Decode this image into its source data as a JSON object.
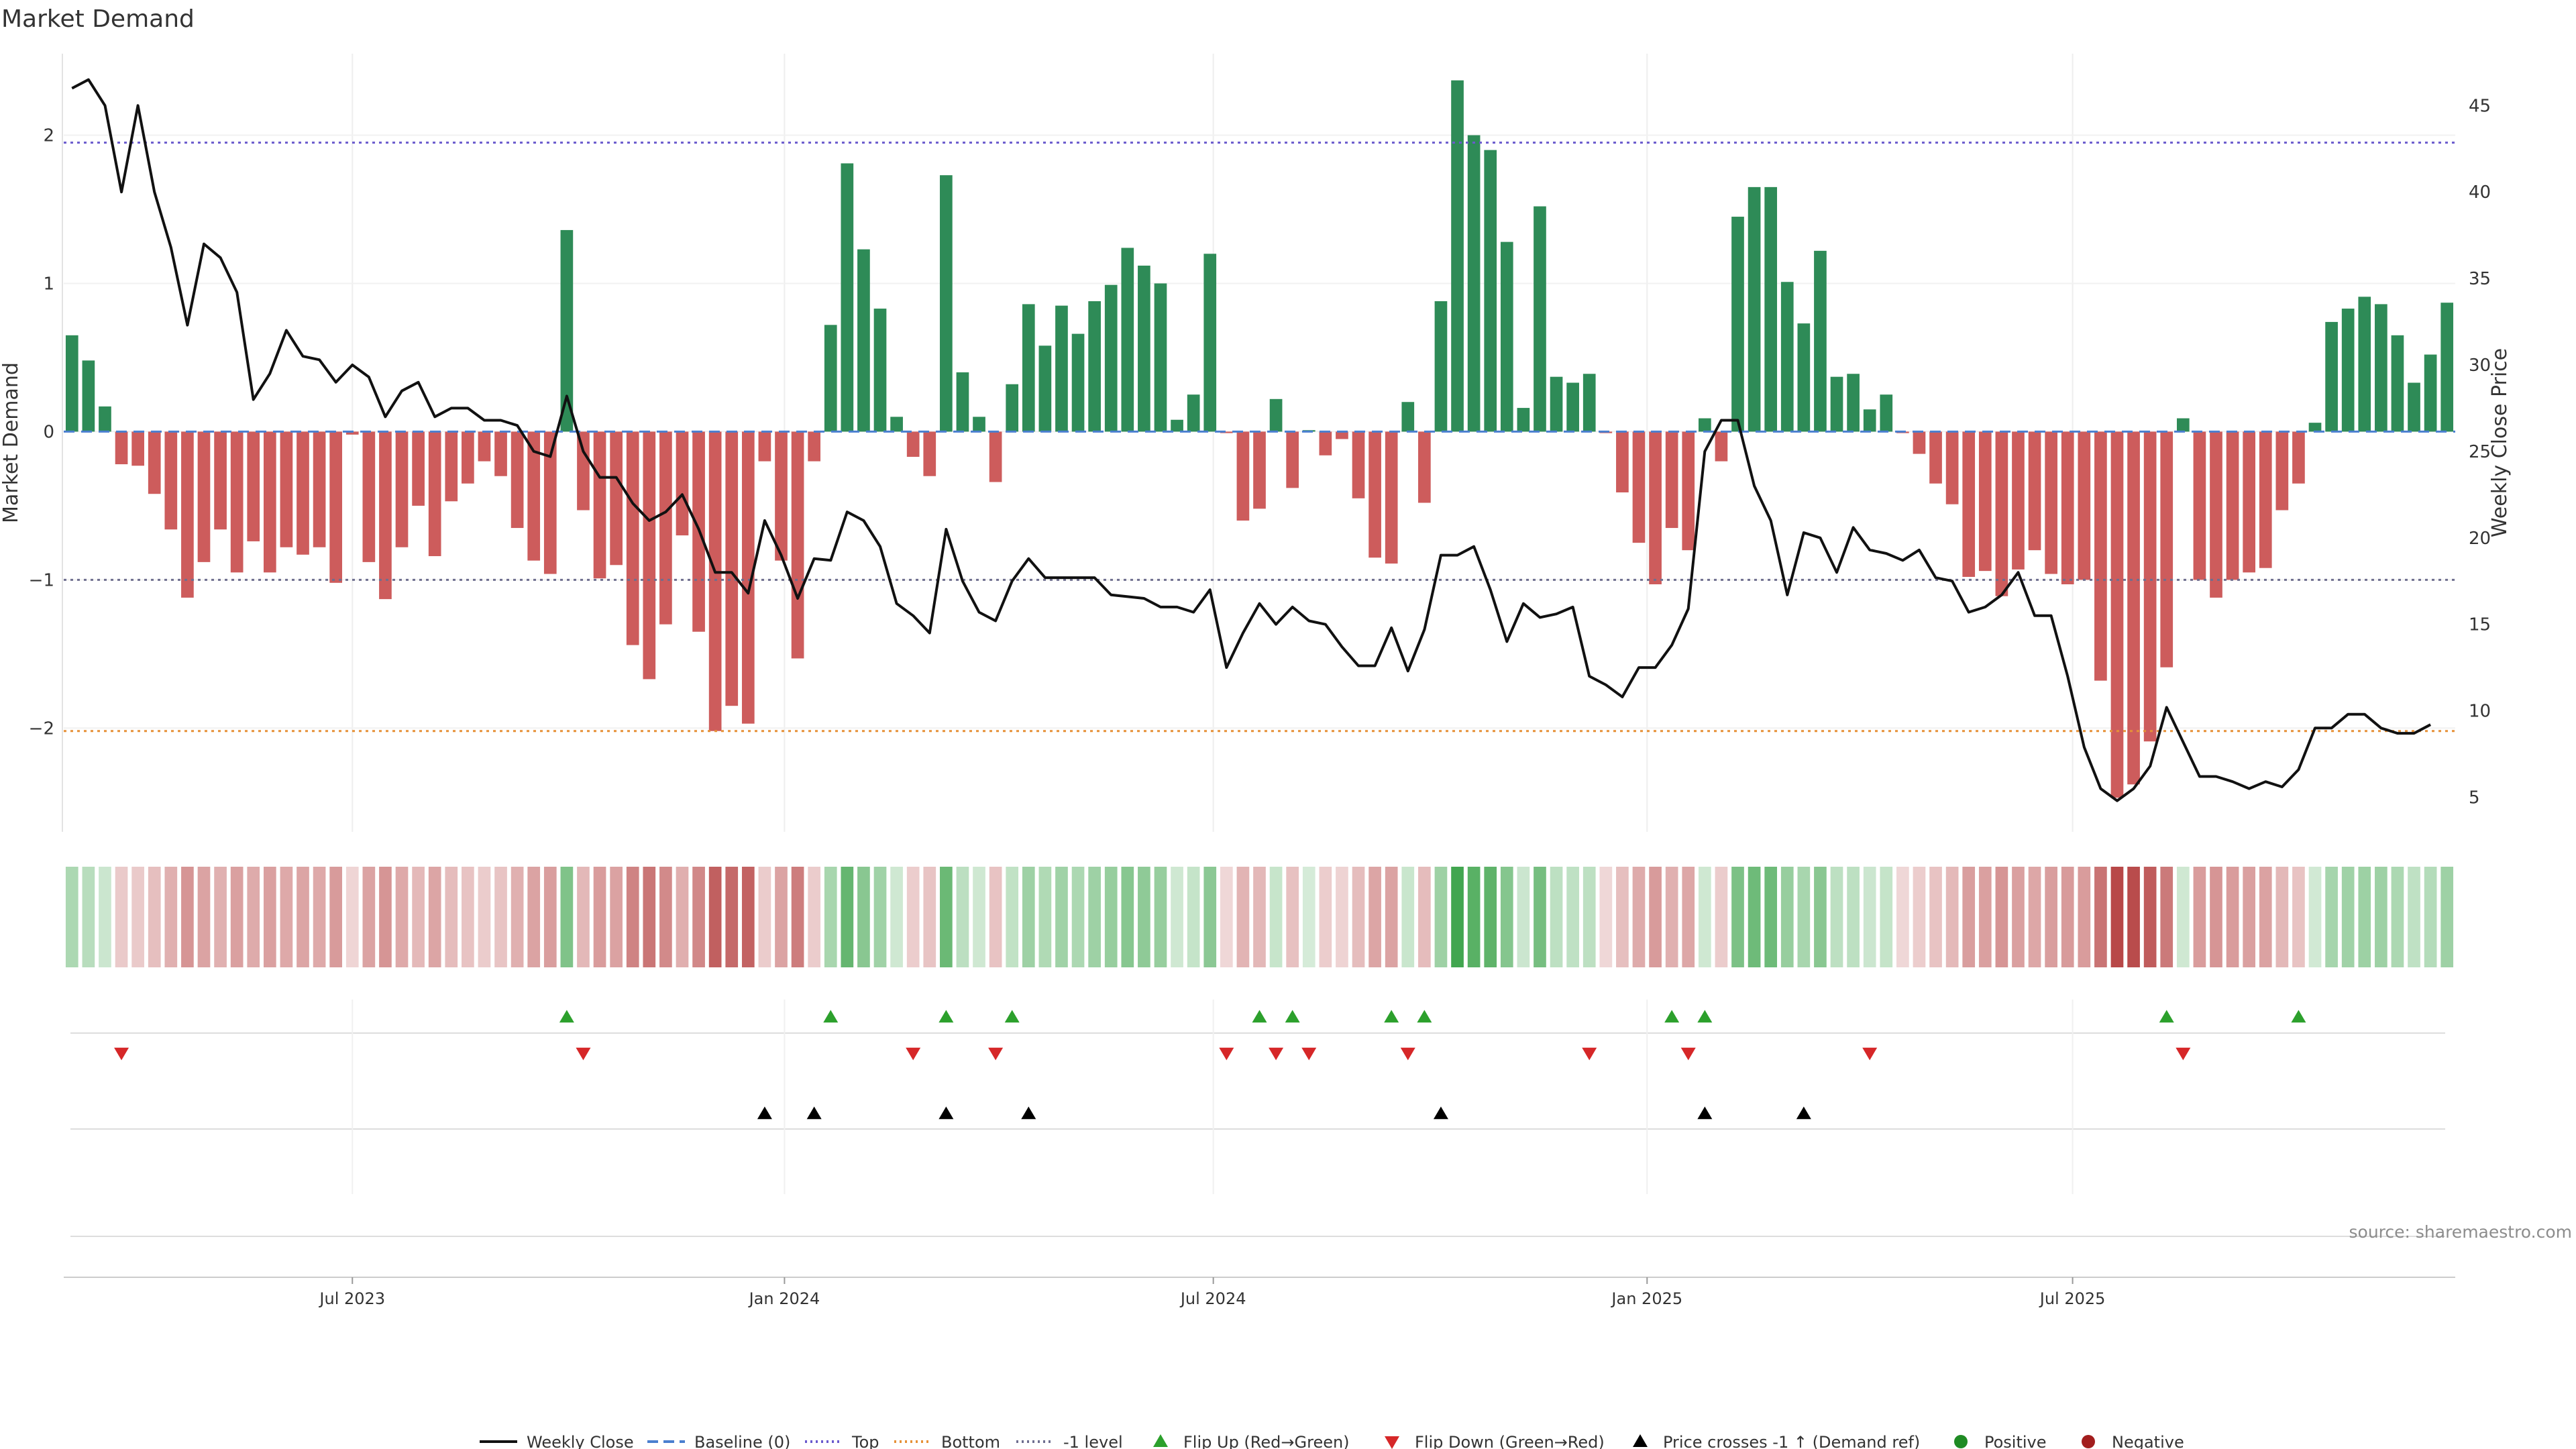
{
  "chart_data": {
    "type": "bar",
    "title": "Market Demand",
    "ylabel_left": "Market Demand",
    "ylabel_right": "Weekly Close Price",
    "source": "source: sharemaestro.com",
    "ylim_left": [
      -2.7,
      2.55
    ],
    "ylim_right": [
      3,
      48
    ],
    "yticks_left": [
      2,
      1,
      0,
      -1,
      -2
    ],
    "yticks_left_labels": [
      "2",
      "1",
      "0",
      "−1",
      "−2"
    ],
    "yticks_right": [
      45,
      40,
      35,
      30,
      25,
      20,
      15,
      10,
      5
    ],
    "yticks_right_labels": [
      "45",
      "40",
      "35",
      "30",
      "25",
      "20",
      "15",
      "10",
      "5"
    ],
    "x_start": "2023-03-03",
    "x_weeks": 145,
    "x_ticks": [
      {
        "label": "Jul 2023",
        "week": 17.5
      },
      {
        "label": "Jan 2024",
        "week": 43.7
      },
      {
        "label": "Jul 2024",
        "week": 69.7
      },
      {
        "label": "Jan 2025",
        "week": 96.0
      },
      {
        "label": "Jul 2025",
        "week": 121.8
      }
    ],
    "levels": {
      "top": 1.95,
      "baseline": 0,
      "minus1": -1,
      "bottom": -2.02
    },
    "demand": [
      0.65,
      0.48,
      0.17,
      -0.22,
      -0.23,
      -0.42,
      -0.66,
      -1.12,
      -0.88,
      -0.66,
      -0.95,
      -0.74,
      -0.95,
      -0.78,
      -0.83,
      -0.78,
      -1.02,
      -0.02,
      -0.88,
      -1.13,
      -0.78,
      -0.5,
      -0.84,
      -0.47,
      -0.35,
      -0.2,
      -0.3,
      -0.65,
      -0.87,
      -0.96,
      1.36,
      -0.53,
      -0.99,
      -0.9,
      -1.44,
      -1.67,
      -1.3,
      -0.7,
      -1.35,
      -2.02,
      -1.85,
      -1.97,
      -0.2,
      -0.87,
      -1.53,
      -0.2,
      0.72,
      1.81,
      1.23,
      0.83,
      0.1,
      -0.17,
      -0.3,
      1.73,
      0.4,
      0.1,
      -0.34,
      0.32,
      0.86,
      0.58,
      0.85,
      0.66,
      0.88,
      0.99,
      1.24,
      1.12,
      1.0,
      0.08,
      0.25,
      1.2,
      -0.01,
      -0.6,
      -0.52,
      0.22,
      -0.38,
      0.01,
      -0.16,
      -0.05,
      -0.45,
      -0.85,
      -0.89,
      0.2,
      -0.48,
      0.88,
      2.37,
      2.0,
      1.9,
      1.28,
      0.16,
      1.52,
      0.37,
      0.33,
      0.39,
      -0.01,
      -0.41,
      -0.75,
      -1.03,
      -0.65,
      -0.8,
      0.09,
      -0.2,
      1.45,
      1.65,
      1.65,
      1.01,
      0.73,
      1.22,
      0.37,
      0.39,
      0.15,
      0.25,
      -0.01,
      -0.15,
      -0.35,
      -0.49,
      -0.98,
      -0.94,
      -1.11,
      -0.93,
      -0.8,
      -0.96,
      -1.03,
      -1.0,
      -1.68,
      -2.47,
      -2.38,
      -2.09,
      -1.59,
      0.09,
      -1.0,
      -1.12,
      -1.0,
      -0.95,
      -0.92,
      -0.53,
      -0.35,
      0.06,
      0.74,
      0.83,
      0.91,
      0.86,
      0.65,
      0.33,
      0.52,
      0.87
    ],
    "price": [
      46.0,
      46.5,
      45.0,
      40.0,
      45.0,
      40.0,
      36.8,
      32.3,
      37.0,
      36.2,
      34.2,
      28.0,
      29.5,
      32.0,
      30.5,
      30.3,
      29.0,
      30.0,
      29.3,
      27.0,
      28.5,
      29.0,
      27.0,
      27.5,
      27.5,
      26.8,
      26.8,
      26.5,
      25.0,
      24.7,
      28.2,
      25.0,
      23.5,
      23.5,
      22.0,
      21.0,
      21.5,
      22.5,
      20.5,
      18.0,
      18.0,
      16.8,
      21.0,
      19.0,
      16.5,
      18.8,
      18.7,
      21.5,
      21.0,
      19.5,
      16.2,
      15.5,
      14.5,
      20.5,
      17.5,
      15.7,
      15.2,
      17.5,
      18.8,
      17.7,
      17.7,
      17.7,
      17.7,
      16.7,
      16.6,
      16.5,
      16.0,
      16.0,
      15.7,
      17.0,
      12.5,
      14.5,
      16.2,
      15.0,
      16.0,
      15.2,
      15.0,
      13.7,
      12.6,
      12.6,
      14.8,
      12.3,
      14.7,
      19.0,
      19.0,
      19.5,
      17.0,
      14.0,
      16.2,
      15.4,
      15.6,
      16.0,
      12.0,
      11.5,
      10.8,
      12.5,
      12.5,
      13.8,
      15.9,
      25.0,
      26.8,
      26.8,
      23.0,
      21.0,
      16.7,
      20.3,
      20.0,
      18.0,
      20.6,
      19.3,
      19.1,
      18.7,
      19.3,
      17.7,
      17.5,
      15.7,
      16.0,
      16.7,
      18.0,
      15.5,
      15.5,
      12.0,
      7.9,
      5.5,
      4.8,
      5.5,
      6.8,
      10.2,
      8.2,
      6.2,
      6.2,
      5.9,
      5.5,
      5.9,
      5.6,
      6.6,
      9.0,
      9.0,
      9.8,
      9.8,
      9.0,
      8.7,
      8.7,
      9.2
    ],
    "flip_up_weeks": [
      30,
      46,
      53,
      57,
      72,
      74,
      80,
      82,
      97,
      99,
      127,
      135
    ],
    "flip_down_weeks": [
      3,
      31,
      51,
      56,
      70,
      73,
      75,
      81,
      92,
      98,
      109,
      128
    ],
    "cross_up_weeks": [
      42,
      45,
      53,
      58,
      83,
      99,
      105
    ],
    "legend": [
      "Weekly Close",
      "Baseline (0)",
      "Top",
      "Bottom",
      "-1 level",
      "Flip Up (Red→Green)",
      "Flip Down (Green→Red)",
      "Price crosses -1 ↑ (Demand ref)",
      "Positive",
      "Negative"
    ]
  },
  "colors": {
    "positive": "#2e8b57",
    "negative": "#cd5c5c",
    "price_line": "#111111",
    "top_line": "#6a5acd",
    "bottom_line": "#e69138",
    "minus1_line": "#6e6e8f",
    "baseline_line": "#4a7fcf",
    "flip_up": "#2ca02c",
    "flip_down": "#d62728",
    "cross": "#000000",
    "legend_positive": "#1f8b24",
    "legend_negative": "#a21d1d"
  }
}
